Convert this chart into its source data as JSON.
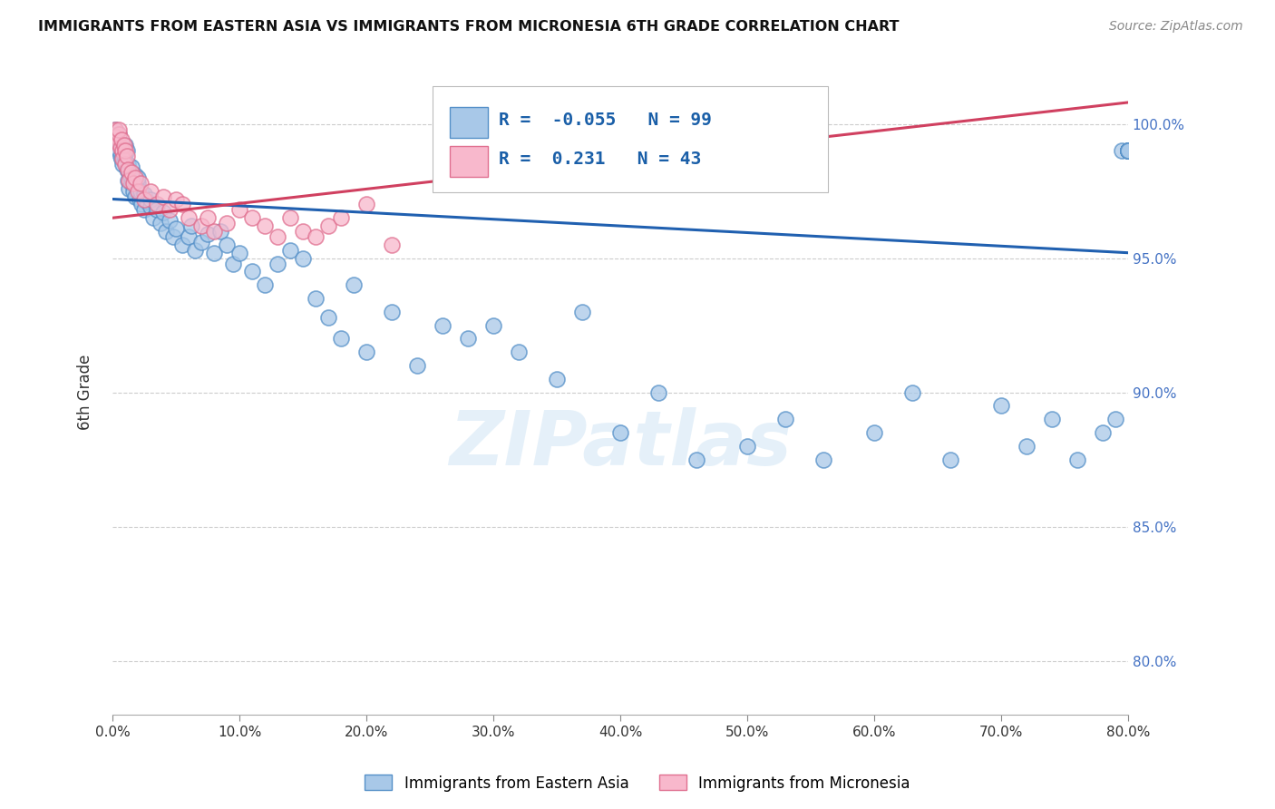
{
  "title": "IMMIGRANTS FROM EASTERN ASIA VS IMMIGRANTS FROM MICRONESIA 6TH GRADE CORRELATION CHART",
  "source": "Source: ZipAtlas.com",
  "ylabel": "6th Grade",
  "R_blue": -0.055,
  "N_blue": 99,
  "R_pink": 0.231,
  "N_pink": 43,
  "blue_scatter_color": "#a8c8e8",
  "blue_edge_color": "#5590c8",
  "pink_scatter_color": "#f8b8cc",
  "pink_edge_color": "#e07090",
  "blue_line_color": "#2060b0",
  "pink_line_color": "#d04060",
  "legend1_label": "Immigrants from Eastern Asia",
  "legend2_label": "Immigrants from Micronesia",
  "watermark": "ZIPatlas",
  "xlim": [
    0,
    80
  ],
  "ylim": [
    78,
    102
  ],
  "x_ticks": [
    0,
    10,
    20,
    30,
    40,
    50,
    60,
    70,
    80
  ],
  "y_ticks": [
    80,
    85,
    90,
    95,
    100
  ],
  "blue_trend_x0": 0,
  "blue_trend_y0": 97.2,
  "blue_trend_x1": 80,
  "blue_trend_y1": 95.2,
  "pink_trend_x0": 0,
  "pink_trend_y0": 96.5,
  "pink_trend_x1": 80,
  "pink_trend_y1": 100.8,
  "blue_x": [
    0.2,
    0.3,
    0.4,
    0.5,
    0.5,
    0.6,
    0.6,
    0.7,
    0.7,
    0.8,
    0.8,
    0.9,
    1.0,
    1.0,
    1.1,
    1.1,
    1.2,
    1.2,
    1.3,
    1.3,
    1.4,
    1.5,
    1.5,
    1.6,
    1.7,
    1.8,
    1.8,
    2.0,
    2.0,
    2.1,
    2.2,
    2.3,
    2.5,
    2.5,
    2.7,
    3.0,
    3.0,
    3.2,
    3.5,
    3.8,
    4.0,
    4.2,
    4.5,
    4.8,
    5.0,
    5.5,
    6.0,
    6.2,
    6.5,
    7.0,
    7.5,
    8.0,
    8.5,
    9.0,
    9.5,
    10.0,
    11.0,
    12.0,
    13.0,
    14.0,
    15.0,
    16.0,
    17.0,
    18.0,
    19.0,
    20.0,
    22.0,
    24.0,
    26.0,
    28.0,
    30.0,
    32.0,
    35.0,
    37.0,
    40.0,
    43.0,
    46.0,
    50.0,
    53.0,
    56.0,
    60.0,
    63.0,
    66.0,
    70.0,
    72.0,
    74.0,
    76.0,
    78.0,
    79.0,
    79.5,
    80.0,
    80.0,
    80.0,
    80.0,
    80.0,
    80.0,
    80.0,
    80.0,
    80.0
  ],
  "blue_y": [
    99.8,
    99.5,
    99.3,
    99.6,
    99.0,
    99.2,
    98.8,
    99.1,
    98.7,
    99.0,
    98.5,
    98.8,
    98.6,
    99.2,
    98.3,
    99.0,
    98.5,
    97.9,
    98.2,
    97.6,
    98.0,
    97.8,
    98.4,
    97.5,
    97.9,
    98.1,
    97.3,
    97.8,
    98.0,
    97.2,
    97.5,
    97.0,
    97.4,
    96.8,
    97.1,
    96.9,
    97.2,
    96.5,
    96.8,
    96.3,
    96.7,
    96.0,
    96.4,
    95.8,
    96.1,
    95.5,
    95.8,
    96.2,
    95.3,
    95.6,
    95.9,
    95.2,
    96.0,
    95.5,
    94.8,
    95.2,
    94.5,
    94.0,
    94.8,
    95.3,
    95.0,
    93.5,
    92.8,
    92.0,
    94.0,
    91.5,
    93.0,
    91.0,
    92.5,
    92.0,
    92.5,
    91.5,
    90.5,
    93.0,
    88.5,
    90.0,
    87.5,
    88.0,
    89.0,
    87.5,
    88.5,
    90.0,
    87.5,
    89.5,
    88.0,
    89.0,
    87.5,
    88.5,
    89.0,
    99.0,
    99.0,
    99.0,
    99.0,
    99.0,
    99.0,
    99.0,
    99.0,
    99.0,
    99.0
  ],
  "pink_x": [
    0.2,
    0.3,
    0.4,
    0.5,
    0.5,
    0.6,
    0.7,
    0.8,
    0.8,
    0.9,
    1.0,
    1.0,
    1.1,
    1.2,
    1.3,
    1.5,
    1.6,
    1.8,
    2.0,
    2.2,
    2.5,
    3.0,
    3.5,
    4.0,
    4.5,
    5.0,
    5.5,
    6.0,
    7.0,
    7.5,
    8.0,
    9.0,
    10.0,
    11.0,
    12.0,
    13.0,
    14.0,
    15.0,
    16.0,
    17.0,
    18.0,
    20.0,
    22.0
  ],
  "pink_y": [
    99.8,
    99.5,
    99.3,
    99.6,
    99.8,
    99.1,
    99.4,
    99.0,
    98.7,
    99.2,
    98.5,
    99.0,
    98.8,
    98.3,
    97.9,
    98.2,
    97.8,
    98.0,
    97.5,
    97.8,
    97.2,
    97.5,
    97.0,
    97.3,
    96.8,
    97.2,
    97.0,
    96.5,
    96.2,
    96.5,
    96.0,
    96.3,
    96.8,
    96.5,
    96.2,
    95.8,
    96.5,
    96.0,
    95.8,
    96.2,
    96.5,
    97.0,
    95.5
  ]
}
